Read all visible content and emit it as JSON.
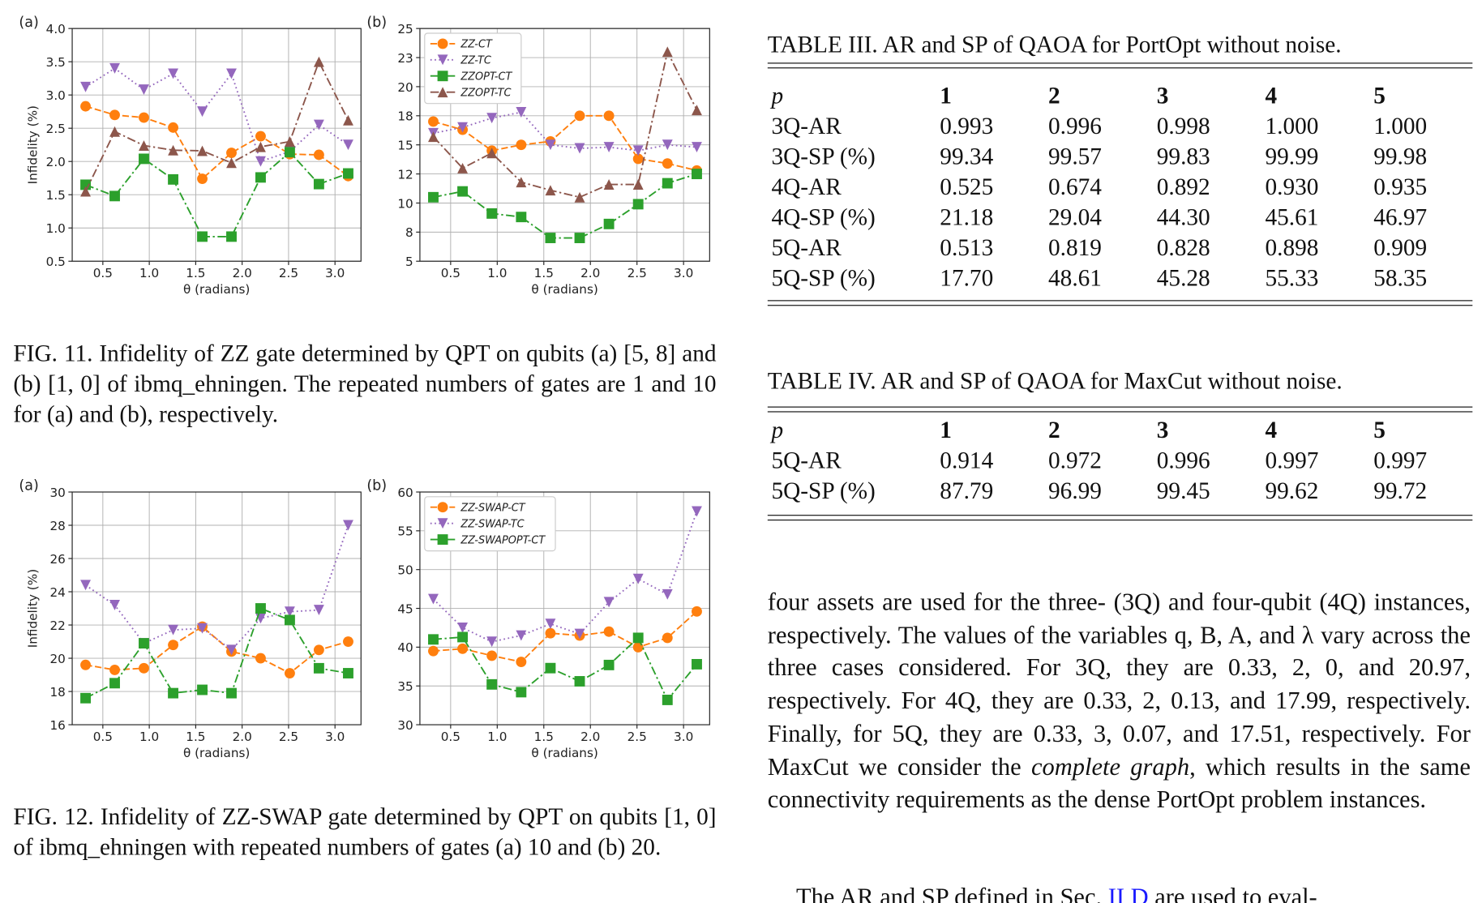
{
  "chart_data": [
    {
      "type": "line",
      "panel_label": "(a)",
      "xlabel": "θ (radians)",
      "ylabel": "Infidelity (%)",
      "x": [
        0.314,
        0.628,
        0.942,
        1.257,
        1.571,
        1.885,
        2.199,
        2.513,
        2.827,
        3.142
      ],
      "xlim": [
        0.17,
        3.28
      ],
      "xticks": [
        0.5,
        {
          "value": 1,
          "label": "1.0"
        },
        1.5,
        {
          "value": 2,
          "label": "2.0"
        },
        2.5,
        {
          "value": 3,
          "label": "3.0"
        }
      ],
      "ylim": [
        0.5,
        4
      ],
      "yticks": [
        0.5,
        {
          "value": 1,
          "label": "1.0"
        },
        1.5,
        {
          "value": 2,
          "label": "2.0"
        },
        2.5,
        {
          "value": 3,
          "label": "3.0"
        },
        3.5,
        {
          "value": 4,
          "label": "4.0"
        }
      ],
      "grid": true,
      "series": [
        {
          "color": "#ff7f0e",
          "marker": "circle",
          "dash": "dashed",
          "values": [
            2.83,
            2.7,
            2.66,
            2.51,
            1.74,
            2.13,
            2.38,
            2.11,
            2.1,
            1.78
          ]
        },
        {
          "color": "#9467bd",
          "marker": "triangle-down",
          "dash": "dotted",
          "values": [
            3.12,
            3.4,
            3.08,
            3.32,
            2.75,
            3.32,
            2.0,
            2.15,
            2.55,
            2.25
          ]
        },
        {
          "color": "#2ca02c",
          "marker": "square",
          "dash": "dashdot",
          "values": [
            1.65,
            1.48,
            2.04,
            1.73,
            0.87,
            0.87,
            1.76,
            2.14,
            1.66,
            1.82
          ]
        },
        {
          "color": "#8c564b",
          "marker": "triangle-up",
          "dash": "dashdot",
          "values": [
            1.55,
            2.45,
            2.24,
            2.17,
            2.16,
            1.98,
            2.22,
            2.3,
            3.5,
            2.62
          ]
        }
      ]
    },
    {
      "type": "line",
      "panel_label": "(b)",
      "xlabel": "θ (radians)",
      "x": [
        0.314,
        0.628,
        0.942,
        1.257,
        1.571,
        1.885,
        2.199,
        2.513,
        2.827,
        3.142
      ],
      "xlim": [
        0.17,
        3.28
      ],
      "xticks": [
        0.5,
        {
          "value": 1,
          "label": "1.0"
        },
        1.5,
        {
          "value": 2,
          "label": "2.0"
        },
        2.5,
        {
          "value": 3,
          "label": "3.0"
        }
      ],
      "ylim": [
        5,
        25
      ],
      "yticks": [
        5,
        {
          "value": 7.5,
          "label": "8"
        },
        10,
        {
          "value": 12.5,
          "label": "12"
        },
        15,
        {
          "value": 17.5,
          "label": "18"
        },
        20,
        {
          "value": 22.5,
          "label": "23"
        },
        25
      ],
      "grid": true,
      "legend": "upper left",
      "series": [
        {
          "name": "ZZ-CT",
          "color": "#ff7f0e",
          "marker": "circle",
          "dash": "dashed",
          "values": [
            17.0,
            16.3,
            14.5,
            15.0,
            15.3,
            17.5,
            17.5,
            13.8,
            13.4,
            12.8
          ]
        },
        {
          "name": "ZZ-TC",
          "color": "#9467bd",
          "marker": "triangle-down",
          "dash": "dotted",
          "values": [
            16.0,
            16.5,
            17.3,
            17.8,
            15.0,
            14.7,
            14.8,
            14.5,
            15.0,
            14.8
          ]
        },
        {
          "name": "ZZOPT-CT",
          "color": "#2ca02c",
          "marker": "square",
          "dash": "dashdot",
          "values": [
            10.5,
            11.0,
            9.1,
            8.8,
            7.0,
            7.0,
            8.2,
            9.9,
            11.7,
            12.5
          ]
        },
        {
          "name": "ZZOPT-TC",
          "color": "#8c564b",
          "marker": "triangle-up",
          "dash": "dashdot",
          "values": [
            15.7,
            13.0,
            14.3,
            11.8,
            11.1,
            10.5,
            11.6,
            11.6,
            23.0,
            18.0
          ]
        }
      ]
    },
    {
      "type": "line",
      "panel_label": "(a)",
      "xlabel": "θ (radians)",
      "ylabel": "Infidelity (%)",
      "x": [
        0.314,
        0.628,
        0.942,
        1.257,
        1.571,
        1.885,
        2.199,
        2.513,
        2.827,
        3.142
      ],
      "xlim": [
        0.17,
        3.28
      ],
      "xticks": [
        0.5,
        {
          "value": 1,
          "label": "1.0"
        },
        1.5,
        {
          "value": 2,
          "label": "2.0"
        },
        2.5,
        {
          "value": 3,
          "label": "3.0"
        }
      ],
      "ylim": [
        16,
        30
      ],
      "yticks": [
        16,
        18,
        20,
        22,
        24,
        26,
        28,
        30
      ],
      "grid": true,
      "series": [
        {
          "color": "#ff7f0e",
          "marker": "circle",
          "dash": "dashed",
          "values": [
            19.6,
            19.3,
            19.4,
            20.8,
            21.9,
            20.4,
            20.0,
            19.1,
            20.5,
            21.0
          ]
        },
        {
          "color": "#9467bd",
          "marker": "triangle-down",
          "dash": "dotted",
          "values": [
            24.4,
            23.2,
            20.9,
            21.7,
            21.8,
            20.5,
            22.4,
            22.8,
            22.9,
            28.0
          ]
        },
        {
          "color": "#2ca02c",
          "marker": "square",
          "dash": "dashdot",
          "values": [
            17.6,
            18.5,
            20.9,
            17.9,
            18.1,
            17.9,
            23.0,
            22.3,
            19.4,
            19.1
          ]
        }
      ]
    },
    {
      "type": "line",
      "panel_label": "(b)",
      "xlabel": "θ (radians)",
      "x": [
        0.314,
        0.628,
        0.942,
        1.257,
        1.571,
        1.885,
        2.199,
        2.513,
        2.827,
        3.142
      ],
      "xlim": [
        0.17,
        3.28
      ],
      "xticks": [
        0.5,
        {
          "value": 1,
          "label": "1.0"
        },
        1.5,
        {
          "value": 2,
          "label": "2.0"
        },
        2.5,
        {
          "value": 3,
          "label": "3.0"
        }
      ],
      "ylim": [
        30,
        60
      ],
      "yticks": [
        30,
        35,
        40,
        45,
        50,
        55,
        60
      ],
      "grid": true,
      "legend": "upper left",
      "series": [
        {
          "name": "ZZ-SWAP-CT",
          "color": "#ff7f0e",
          "marker": "circle",
          "dash": "dashed",
          "values": [
            39.5,
            39.8,
            38.9,
            38.1,
            41.8,
            41.5,
            42.0,
            40.0,
            41.2,
            44.6
          ]
        },
        {
          "name": "ZZ-SWAP-TC",
          "color": "#9467bd",
          "marker": "triangle-down",
          "dash": "dotted",
          "values": [
            46.2,
            42.5,
            40.7,
            41.5,
            43.0,
            41.7,
            45.8,
            48.8,
            46.8,
            57.5
          ]
        },
        {
          "name": "ZZ-SWAPOPT-CT",
          "color": "#2ca02c",
          "marker": "square",
          "dash": "dashdot",
          "values": [
            41.0,
            41.3,
            35.2,
            34.2,
            37.3,
            35.6,
            37.7,
            41.2,
            33.2,
            37.8
          ]
        }
      ]
    }
  ],
  "captions": [
    "FIG. 11. Infidelity of ZZ gate determined by QPT on qubits (a) [5, 8] and (b) [1, 0] of ibmq_ehningen. The repeated numbers of gates are 1 and 10 for (a) and (b), respectively.",
    "FIG. 12. Infidelity of ZZ-SWAP gate determined by QPT on qubits [1, 0] of ibmq_ehningen with repeated numbers of gates (a) 10 and (b) 20."
  ],
  "tables": [
    {
      "caption": "TABLE III. AR and SP of QAOA for PortOpt without noise.",
      "header": [
        "p",
        "1",
        "2",
        "3",
        "4",
        "5"
      ],
      "rows": [
        [
          "3Q-AR",
          "0.993",
          "0.996",
          "0.998",
          "1.000",
          "1.000"
        ],
        [
          "3Q-SP (%)",
          "99.34",
          "99.57",
          "99.83",
          "99.99",
          "99.98"
        ],
        [
          "4Q-AR",
          "0.525",
          "0.674",
          "0.892",
          "0.930",
          "0.935"
        ],
        [
          "4Q-SP (%)",
          "21.18",
          "29.04",
          "44.30",
          "45.61",
          "46.97"
        ],
        [
          "5Q-AR",
          "0.513",
          "0.819",
          "0.828",
          "0.898",
          "0.909"
        ],
        [
          "5Q-SP (%)",
          "17.70",
          "48.61",
          "45.28",
          "55.33",
          "58.35"
        ]
      ]
    },
    {
      "caption": "TABLE IV. AR and SP of QAOA for MaxCut without noise.",
      "header": [
        "p",
        "1",
        "2",
        "3",
        "4",
        "5"
      ],
      "rows": [
        [
          "5Q-AR",
          "0.914",
          "0.972",
          "0.996",
          "0.997",
          "0.997"
        ],
        [
          "5Q-SP (%)",
          "87.79",
          "96.99",
          "99.45",
          "99.62",
          "99.72"
        ]
      ]
    }
  ],
  "body": {
    "paragraph": [
      "four assets are used for the three- (3Q) and four-qubit (4Q) instances, respectively. The values of the variables q, B, A, and λ vary across the three cases considered. For 3Q, they are 0.33, 2, 0, and 20.97, respectively. For 4Q, they are 0.33, 2, 0.13, and 17.99, respectively. Finally, for 5Q, they are 0.33, 3, 0.07, and 17.51, respectively. For MaxCut we consider the ",
      "complete graph",
      ", which results in the same connectivity requirements as the dense PortOpt problem instances."
    ],
    "next_line": [
      "The AR and SP defined in Sec. ",
      "II D",
      " are used to eval-"
    ]
  }
}
